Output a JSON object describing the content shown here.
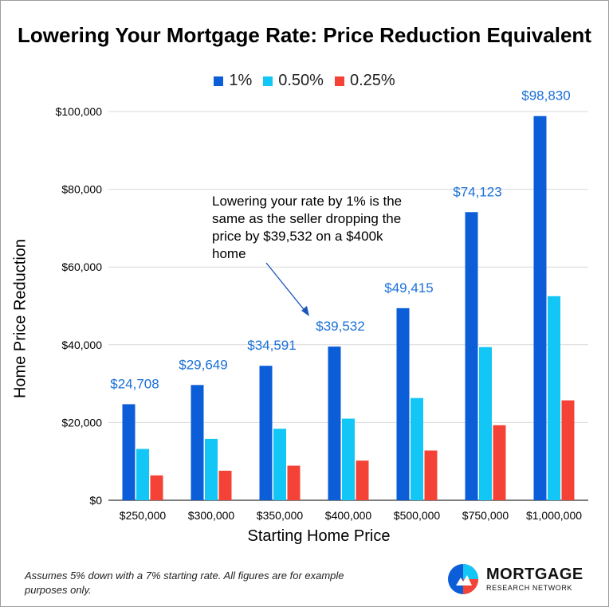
{
  "chart_data": {
    "type": "bar",
    "title": "Lowering Your Mortgage Rate: Price Reduction Equivalent",
    "xlabel": "Starting Home Price",
    "ylabel": "Home Price Reduction",
    "categories": [
      "$250,000",
      "$300,000",
      "$350,000",
      "$400,000",
      "$500,000",
      "$750,000",
      "$1,000,000"
    ],
    "series": [
      {
        "name": "1%",
        "color": "#0b5ed7",
        "values": [
          24708,
          29649,
          34591,
          39532,
          49415,
          74123,
          98830
        ]
      },
      {
        "name": "0.50%",
        "color": "#12c6f5",
        "values": [
          13200,
          15800,
          18400,
          21000,
          26300,
          39400,
          52500
        ]
      },
      {
        "name": "0.25%",
        "color": "#f44336",
        "values": [
          6400,
          7600,
          8900,
          10200,
          12800,
          19300,
          25700
        ]
      }
    ],
    "data_labels": [
      "$24,708",
      "$29,649",
      "$34,591",
      "$39,532",
      "$49,415",
      "$74,123",
      "$98,830"
    ],
    "data_label_color": "#1a6fd8",
    "yticks": [
      0,
      20000,
      40000,
      60000,
      80000,
      100000
    ],
    "ytick_labels": [
      "$0",
      "$20,000",
      "$40,000",
      "$60,000",
      "$80,000",
      "$100,000"
    ],
    "ylim": [
      0,
      100000
    ],
    "grid": true,
    "legend_position": "top-center"
  },
  "annotation": {
    "text": "Lowering your rate by 1% is the same as the seller dropping the price by $39,532 on a $400k home"
  },
  "footnote": "Assumes 5% down with a 7% starting rate.  All figures are for example purposes only.",
  "logo": {
    "name": "MORTGAGE",
    "subtitle": "RESEARCH NETWORK"
  }
}
